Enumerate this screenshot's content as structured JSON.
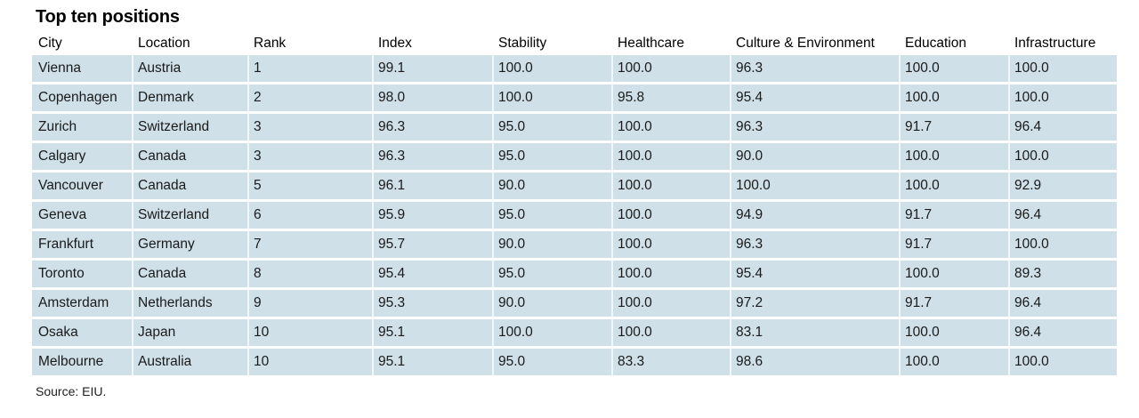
{
  "title": "Top ten positions",
  "source": "Source: EIU.",
  "colors": {
    "row_background": "#cfe0e8",
    "column_separator": "rgba(255,255,255,0.7)",
    "text": "#1a1a1a"
  },
  "table": {
    "columns": [
      {
        "key": "city",
        "label": "City"
      },
      {
        "key": "location",
        "label": "Location"
      },
      {
        "key": "rank",
        "label": "Rank"
      },
      {
        "key": "index",
        "label": "Index"
      },
      {
        "key": "stability",
        "label": "Stability"
      },
      {
        "key": "healthcare",
        "label": "Healthcare"
      },
      {
        "key": "culture_environment",
        "label": "Culture & Environment"
      },
      {
        "key": "education",
        "label": "Education"
      },
      {
        "key": "infrastructure",
        "label": "Infrastructure"
      }
    ],
    "rows": [
      {
        "city": "Vienna",
        "location": "Austria",
        "rank": "1",
        "index": "99.1",
        "stability": "100.0",
        "healthcare": "100.0",
        "culture_environment": "96.3",
        "education": "100.0",
        "infrastructure": "100.0"
      },
      {
        "city": "Copenhagen",
        "location": "Denmark",
        "rank": "2",
        "index": "98.0",
        "stability": "100.0",
        "healthcare": "95.8",
        "culture_environment": "95.4",
        "education": "100.0",
        "infrastructure": "100.0"
      },
      {
        "city": "Zurich",
        "location": "Switzerland",
        "rank": "3",
        "index": "96.3",
        "stability": "95.0",
        "healthcare": "100.0",
        "culture_environment": "96.3",
        "education": "91.7",
        "infrastructure": "96.4"
      },
      {
        "city": "Calgary",
        "location": "Canada",
        "rank": "3",
        "index": "96.3",
        "stability": "95.0",
        "healthcare": "100.0",
        "culture_environment": "90.0",
        "education": "100.0",
        "infrastructure": "100.0"
      },
      {
        "city": "Vancouver",
        "location": "Canada",
        "rank": "5",
        "index": "96.1",
        "stability": "90.0",
        "healthcare": "100.0",
        "culture_environment": "100.0",
        "education": "100.0",
        "infrastructure": "92.9"
      },
      {
        "city": "Geneva",
        "location": "Switzerland",
        "rank": "6",
        "index": "95.9",
        "stability": "95.0",
        "healthcare": "100.0",
        "culture_environment": "94.9",
        "education": "91.7",
        "infrastructure": "96.4"
      },
      {
        "city": "Frankfurt",
        "location": "Germany",
        "rank": "7",
        "index": "95.7",
        "stability": "90.0",
        "healthcare": "100.0",
        "culture_environment": "96.3",
        "education": "91.7",
        "infrastructure": "100.0"
      },
      {
        "city": "Toronto",
        "location": "Canada",
        "rank": "8",
        "index": "95.4",
        "stability": "95.0",
        "healthcare": "100.0",
        "culture_environment": "95.4",
        "education": "100.0",
        "infrastructure": "89.3"
      },
      {
        "city": "Amsterdam",
        "location": "Netherlands",
        "rank": "9",
        "index": "95.3",
        "stability": "90.0",
        "healthcare": "100.0",
        "culture_environment": "97.2",
        "education": "91.7",
        "infrastructure": "96.4"
      },
      {
        "city": "Osaka",
        "location": "Japan",
        "rank": "10",
        "index": "95.1",
        "stability": "100.0",
        "healthcare": "100.0",
        "culture_environment": "83.1",
        "education": "100.0",
        "infrastructure": "96.4"
      },
      {
        "city": "Melbourne",
        "location": "Australia",
        "rank": "10",
        "index": "95.1",
        "stability": "95.0",
        "healthcare": "83.3",
        "culture_environment": "98.6",
        "education": "100.0",
        "infrastructure": "100.0"
      }
    ]
  }
}
